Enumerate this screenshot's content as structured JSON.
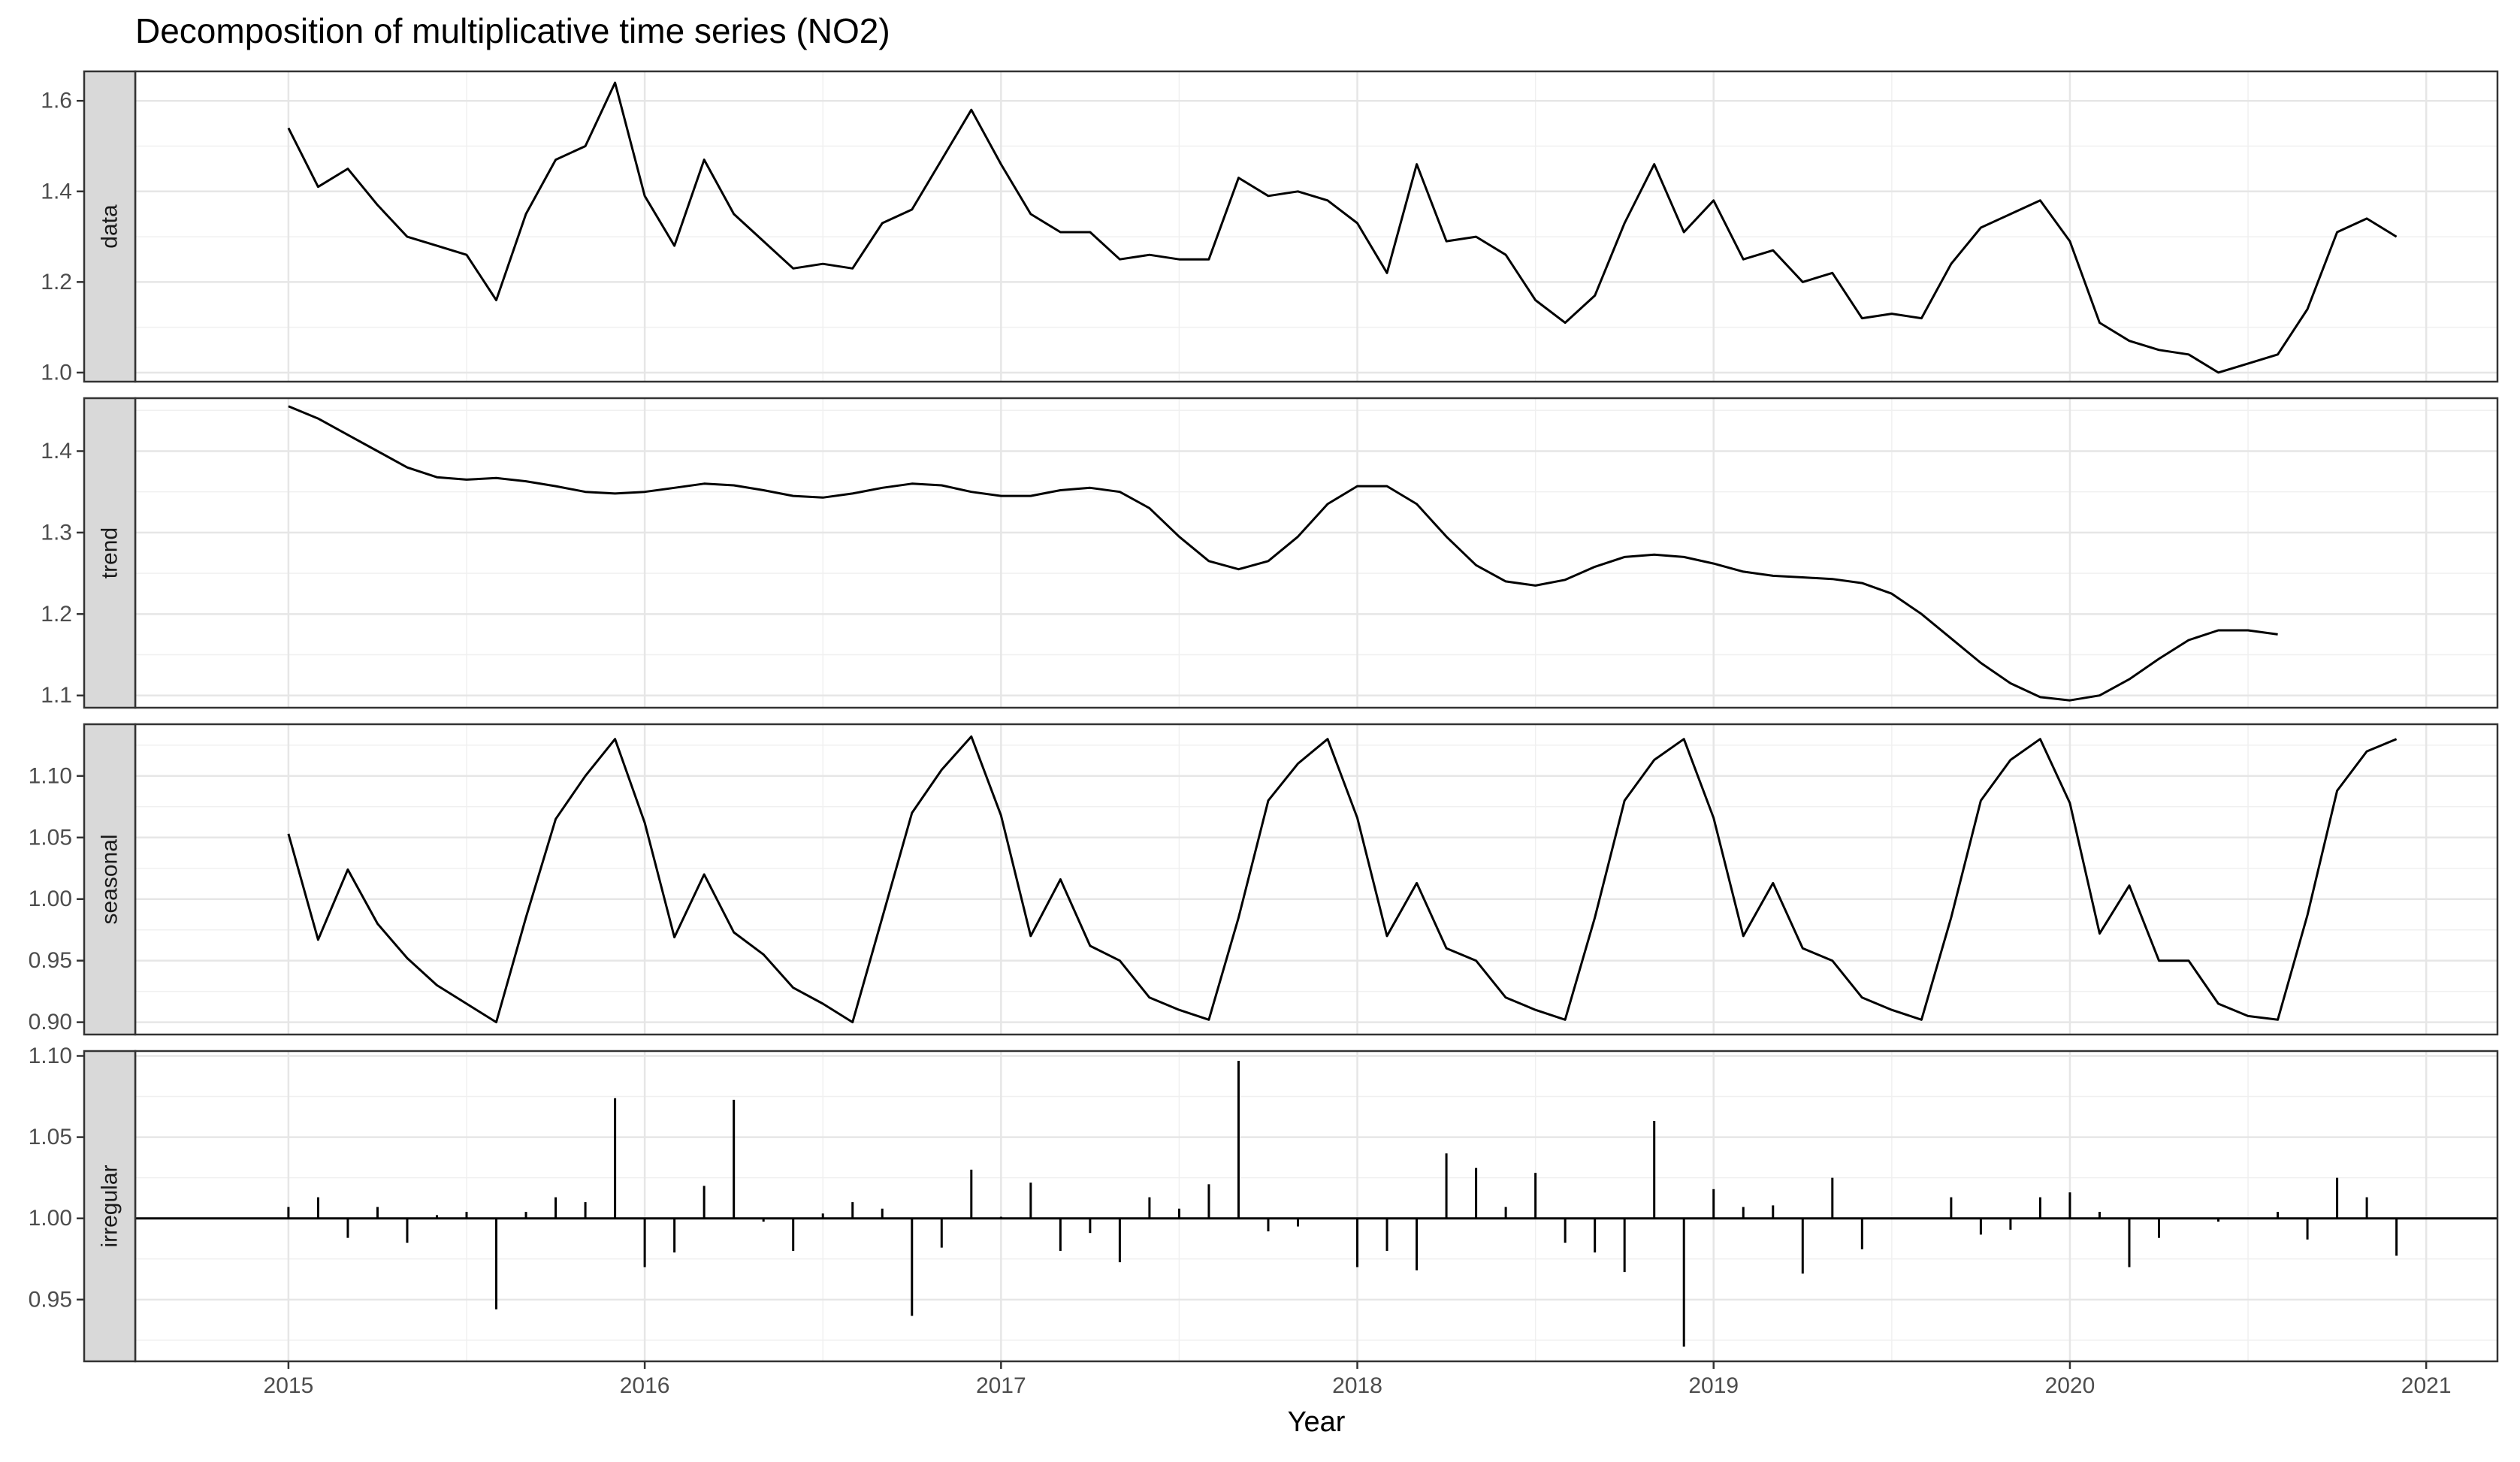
{
  "chart_data": {
    "type": "line",
    "title": "Decomposition of multiplicative time series (NO2)",
    "xlabel": "Year",
    "xlim": [
      2014.57,
      2021.2
    ],
    "x_ticks": [
      2015,
      2016,
      2017,
      2018,
      2019,
      2020,
      2021
    ],
    "x_tick_labels": [
      "2015",
      "2016",
      "2017",
      "2018",
      "2019",
      "2020",
      "2021"
    ],
    "x_start": 2015,
    "x_step": 0.083333,
    "grid": true,
    "panels": [
      {
        "name": "data",
        "style": "line",
        "ylim": [
          0.98,
          1.665
        ],
        "y_ticks": [
          1.0,
          1.2,
          1.4,
          1.6
        ],
        "y_tick_labels": [
          "1.0",
          "1.2",
          "1.4",
          "1.6"
        ],
        "values": [
          1.54,
          1.41,
          1.45,
          1.37,
          1.3,
          1.28,
          1.26,
          1.16,
          1.35,
          1.47,
          1.5,
          1.64,
          1.39,
          1.28,
          1.47,
          1.35,
          1.29,
          1.23,
          1.24,
          1.23,
          1.33,
          1.36,
          1.47,
          1.58,
          1.46,
          1.35,
          1.31,
          1.31,
          1.25,
          1.26,
          1.25,
          1.25,
          1.43,
          1.39,
          1.4,
          1.38,
          1.33,
          1.22,
          1.46,
          1.29,
          1.3,
          1.26,
          1.16,
          1.11,
          1.17,
          1.33,
          1.46,
          1.31,
          1.38,
          1.25,
          1.27,
          1.2,
          1.22,
          1.12,
          1.13,
          1.12,
          1.24,
          1.32,
          1.35,
          1.38,
          1.29,
          1.11,
          1.07,
          1.05,
          1.04,
          1.0,
          1.02,
          1.04,
          1.14,
          1.31,
          1.34,
          1.3
        ]
      },
      {
        "name": "trend",
        "style": "line",
        "ylim": [
          1.085,
          1.465
        ],
        "y_ticks": [
          1.1,
          1.2,
          1.3,
          1.4
        ],
        "y_tick_labels": [
          "1.1",
          "1.2",
          "1.3",
          "1.4"
        ],
        "values": [
          1.455,
          1.44,
          1.42,
          1.4,
          1.38,
          1.368,
          1.365,
          1.367,
          1.363,
          1.357,
          1.35,
          1.348,
          1.35,
          1.355,
          1.36,
          1.358,
          1.352,
          1.345,
          1.343,
          1.348,
          1.355,
          1.36,
          1.358,
          1.35,
          1.345,
          1.345,
          1.352,
          1.355,
          1.35,
          1.33,
          1.295,
          1.265,
          1.255,
          1.265,
          1.295,
          1.335,
          1.357,
          1.357,
          1.335,
          1.295,
          1.26,
          1.24,
          1.235,
          1.242,
          1.258,
          1.27,
          1.273,
          1.27,
          1.262,
          1.252,
          1.247,
          1.245,
          1.243,
          1.238,
          1.225,
          1.2,
          1.17,
          1.14,
          1.115,
          1.098,
          1.094,
          1.1,
          1.12,
          1.145,
          1.168,
          1.18,
          1.18,
          1.175
        ]
      },
      {
        "name": "seasonal",
        "style": "line",
        "ylim": [
          0.89,
          1.142
        ],
        "y_ticks": [
          0.9,
          0.95,
          1.0,
          1.05,
          1.1
        ],
        "y_tick_labels": [
          "0.90",
          "0.95",
          "1.00",
          "1.05",
          "1.10"
        ],
        "values": [
          1.053,
          0.967,
          1.024,
          0.98,
          0.952,
          0.93,
          0.915,
          0.9,
          0.985,
          1.065,
          1.1,
          1.13,
          1.062,
          0.969,
          1.02,
          0.973,
          0.955,
          0.928,
          0.915,
          0.9,
          0.985,
          1.07,
          1.105,
          1.132,
          1.068,
          0.97,
          1.016,
          0.962,
          0.95,
          0.92,
          0.91,
          0.902,
          0.985,
          1.08,
          1.11,
          1.13,
          1.066,
          0.97,
          1.013,
          0.96,
          0.95,
          0.92,
          0.91,
          0.902,
          0.985,
          1.08,
          1.113,
          1.13,
          1.066,
          0.97,
          1.013,
          0.96,
          0.95,
          0.92,
          0.91,
          0.902,
          0.985,
          1.08,
          1.113,
          1.13,
          1.078,
          0.972,
          1.011,
          0.95,
          0.95,
          0.915,
          0.905,
          0.902,
          0.987,
          1.088,
          1.12,
          1.13
        ]
      },
      {
        "name": "irregular",
        "style": "spike",
        "baseline": 1.0,
        "ylim": [
          0.912,
          1.103
        ],
        "y_ticks": [
          0.95,
          1.0,
          1.05,
          1.1
        ],
        "y_tick_labels": [
          "0.95",
          "1.00",
          "1.05",
          "1.10"
        ],
        "values": [
          1.007,
          1.013,
          0.988,
          1.007,
          0.985,
          1.002,
          1.004,
          0.944,
          1.004,
          1.013,
          1.01,
          1.074,
          0.97,
          0.979,
          1.02,
          1.073,
          0.998,
          0.98,
          1.003,
          1.01,
          1.006,
          0.94,
          0.982,
          1.03,
          1.001,
          1.022,
          0.98,
          0.991,
          0.973,
          1.013,
          1.006,
          1.021,
          1.097,
          0.992,
          0.995,
          1.0,
          0.97,
          0.98,
          0.968,
          1.04,
          1.031,
          1.007,
          1.028,
          0.985,
          0.979,
          0.967,
          1.06,
          0.921,
          1.018,
          1.007,
          1.008,
          0.966,
          1.025,
          0.981,
          1.0,
          1.0,
          1.013,
          0.99,
          0.993,
          1.013,
          1.016,
          1.004,
          0.97,
          0.988,
          1.0,
          0.998,
          1.0,
          1.004,
          0.987,
          1.025,
          1.013,
          0.977
        ]
      }
    ]
  }
}
